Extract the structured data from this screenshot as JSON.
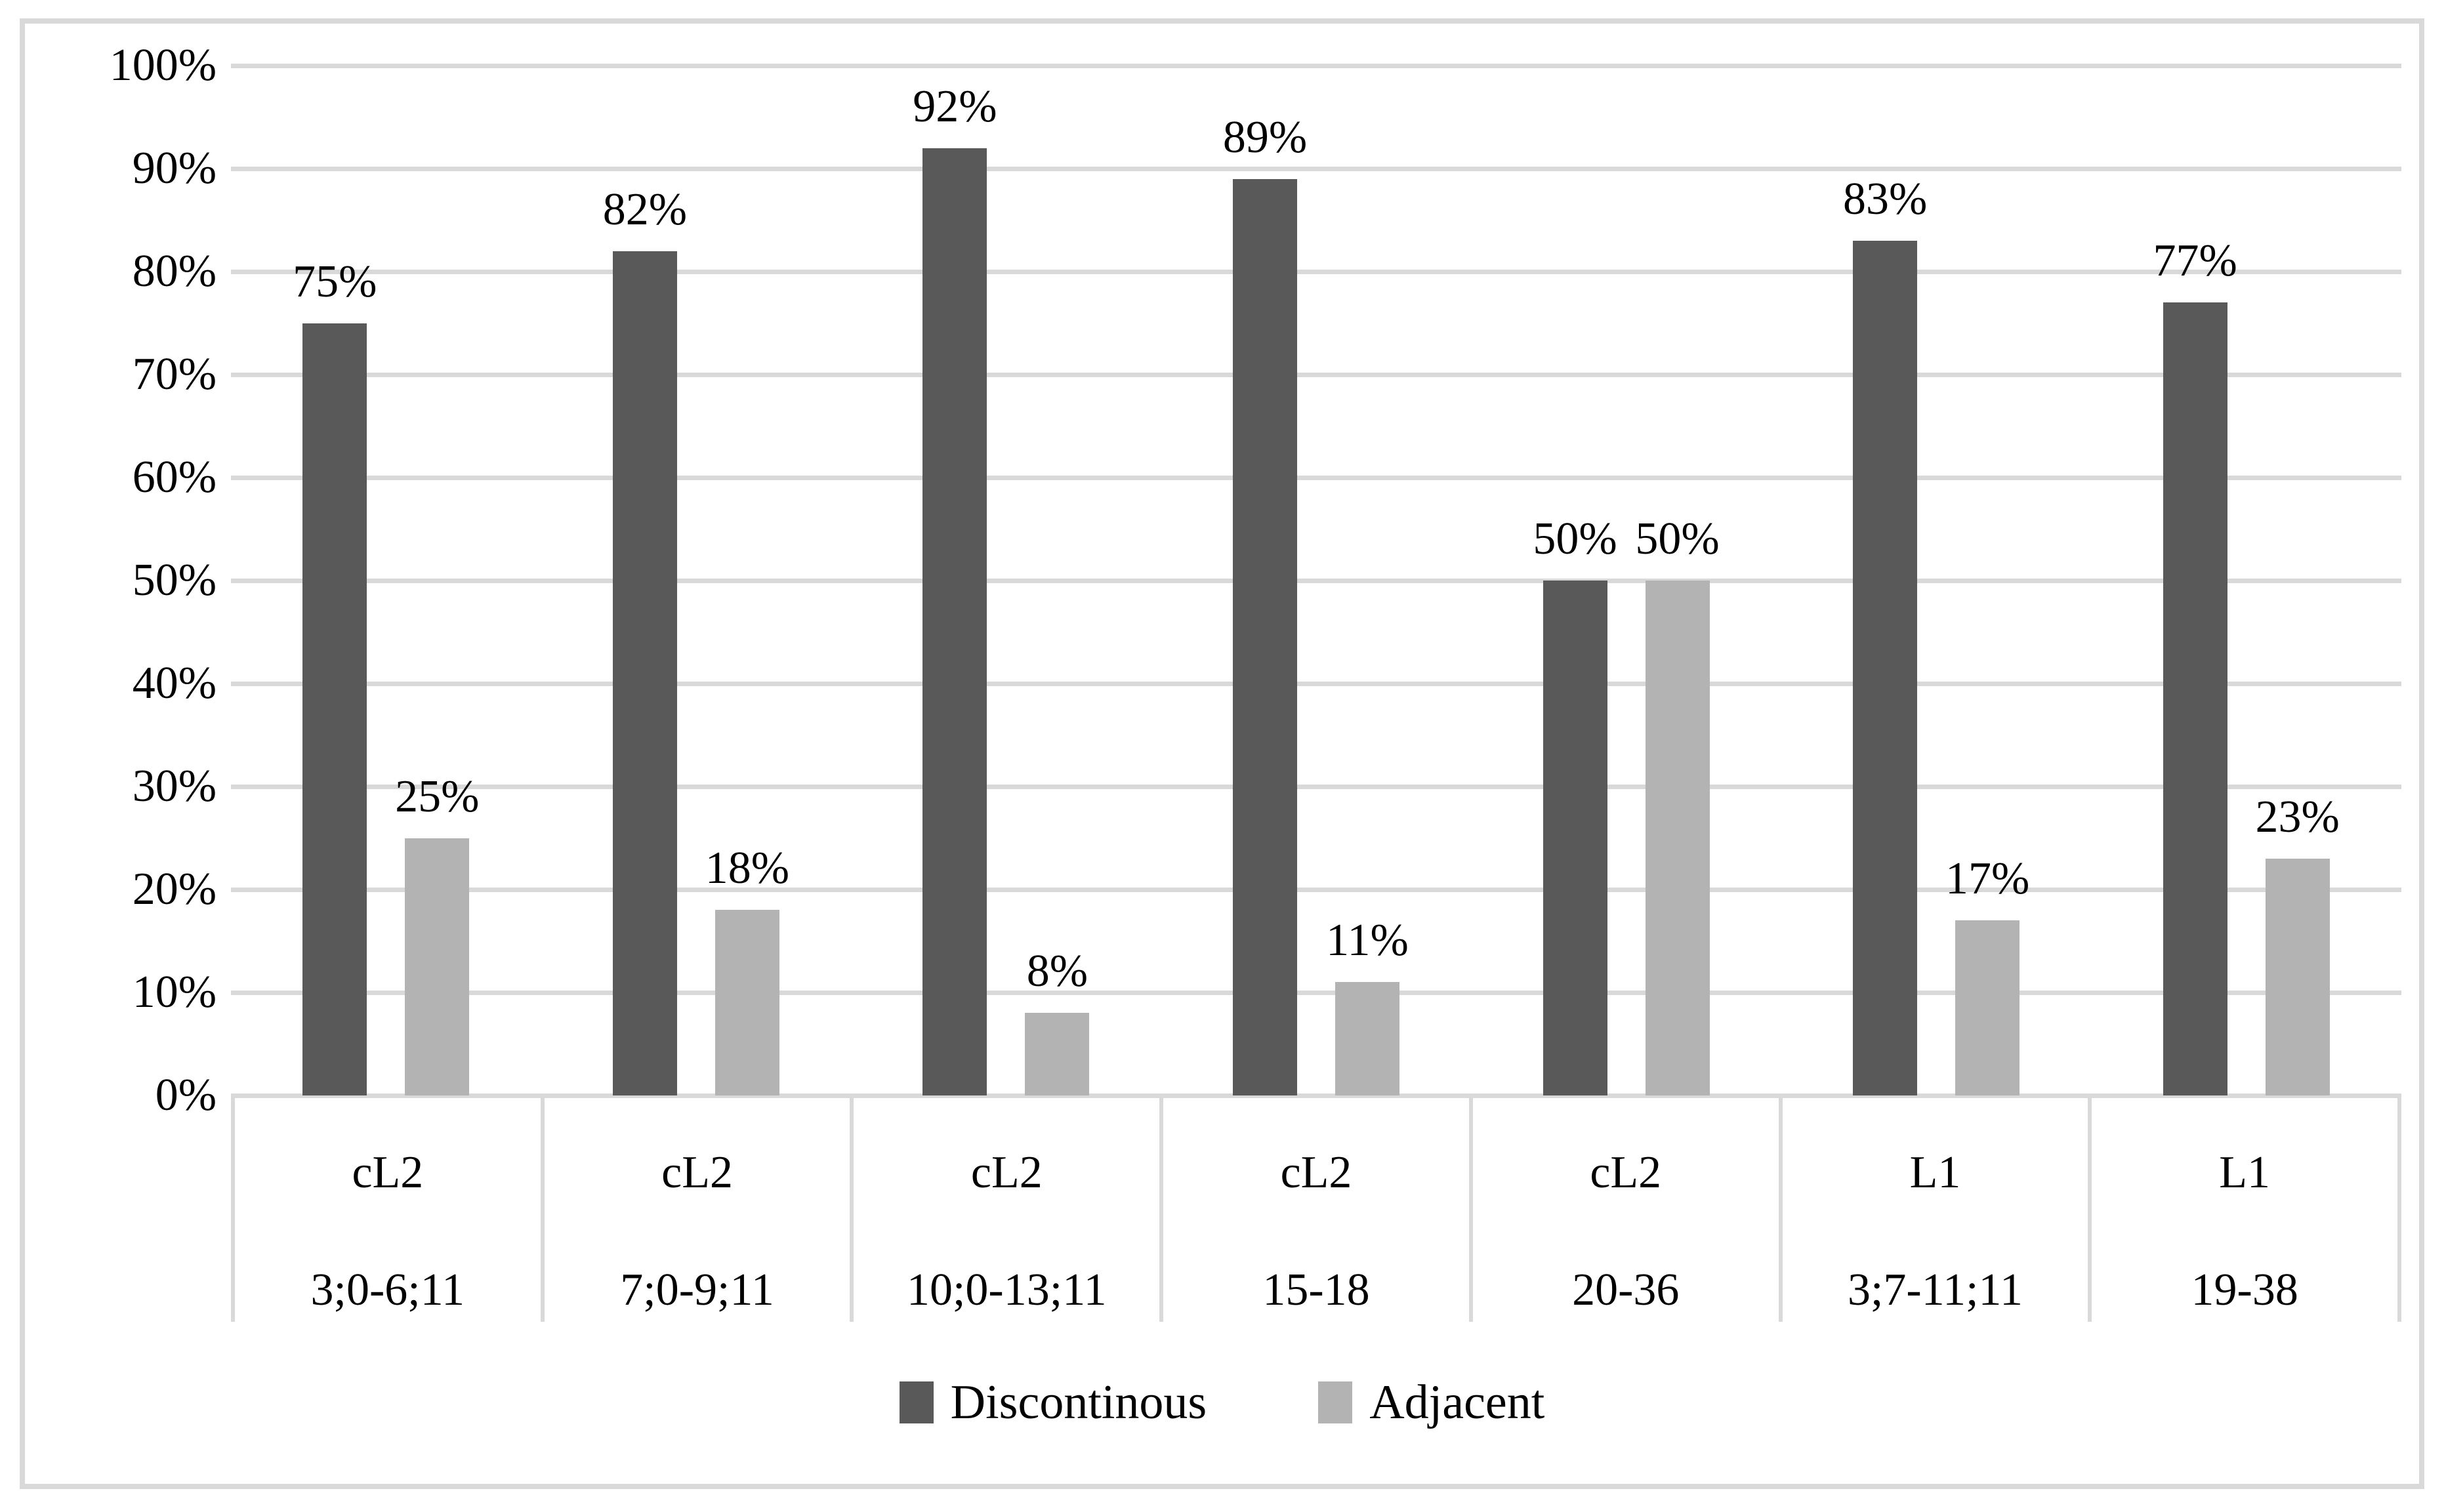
{
  "chart_data": {
    "type": "bar",
    "title": "",
    "xlabel": "",
    "ylabel": "",
    "ylim": [
      0,
      100
    ],
    "grid": true,
    "legend_position": "bottom",
    "data_label_format": "{v}%",
    "y_ticks": [
      "0%",
      "10%",
      "20%",
      "30%",
      "40%",
      "50%",
      "60%",
      "70%",
      "80%",
      "90%",
      "100%"
    ],
    "categories": [
      {
        "group": "cL2",
        "range": "3;0-6;11"
      },
      {
        "group": "cL2",
        "range": "7;0-9;11"
      },
      {
        "group": "cL2",
        "range": "10;0-13;11"
      },
      {
        "group": "cL2",
        "range": "15-18"
      },
      {
        "group": "cL2",
        "range": "20-36"
      },
      {
        "group": "L1",
        "range": "3;7-11;11"
      },
      {
        "group": "L1",
        "range": "19-38"
      }
    ],
    "series": [
      {
        "name": "Discontinous",
        "color": "#595959",
        "values": [
          75,
          82,
          92,
          89,
          50,
          83,
          77
        ],
        "labels": [
          "75%",
          "82%",
          "92%",
          "89%",
          "50%",
          "83%",
          "77%"
        ]
      },
      {
        "name": "Adjacent",
        "color": "#b3b3b3",
        "values": [
          25,
          18,
          8,
          11,
          50,
          17,
          23
        ],
        "labels": [
          "25%",
          "18%",
          "8%",
          "11%",
          "50%",
          "17%",
          "23%"
        ]
      }
    ],
    "colors": {
      "gridline": "#d9d9d9",
      "frame_border": "#d9d9d9",
      "table_divider": "#d9d9d9",
      "text": "#000000",
      "background": "#ffffff"
    }
  }
}
